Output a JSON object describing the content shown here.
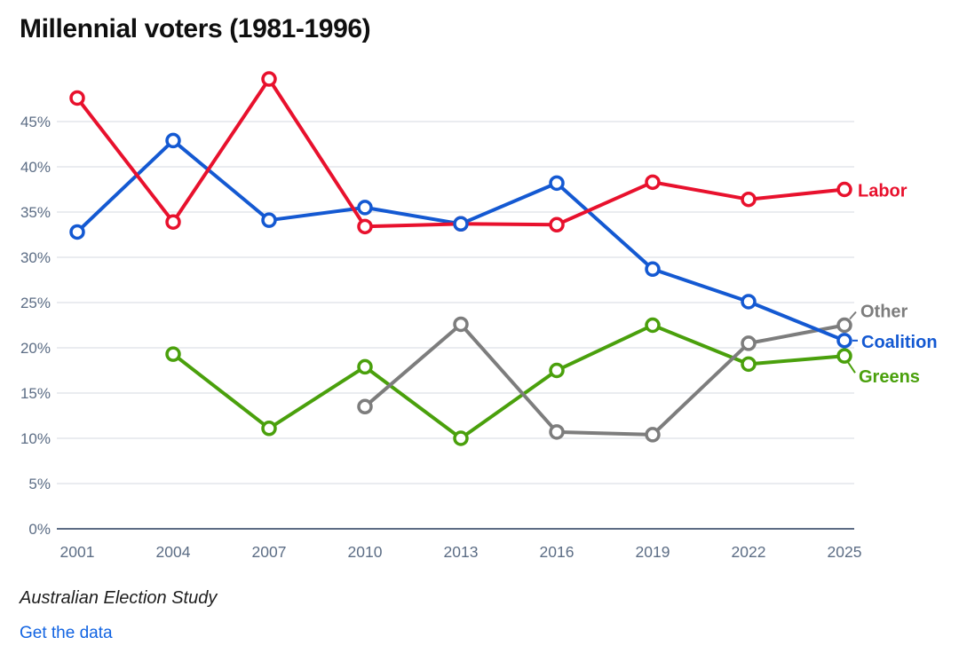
{
  "title": "Millennial voters (1981-1996)",
  "footer": {
    "source": "Australian Election Study",
    "link_label": "Get the data"
  },
  "colors": {
    "labor": "#e8112d",
    "coalition": "#1459d2",
    "greens": "#4aa00c",
    "other": "#7d7d7d",
    "axis_text": "#5c6d85",
    "gridline": "#e3e6eb",
    "zero_line": "#5d6c84",
    "title_text": "#0f0f0f",
    "link": "#1264e2"
  },
  "chart_data": {
    "type": "line",
    "title": "Millennial voters (1981-1996)",
    "x": [
      2001,
      2004,
      2007,
      2010,
      2013,
      2016,
      2019,
      2022,
      2025
    ],
    "x_tick_labels": [
      "2001",
      "2004",
      "2007",
      "2010",
      "2013",
      "2016",
      "2019",
      "2022",
      "2025"
    ],
    "yticks": [
      0,
      5,
      10,
      15,
      20,
      25,
      30,
      35,
      40,
      45
    ],
    "y_tick_labels": [
      "0%",
      "5%",
      "10%",
      "15%",
      "20%",
      "25%",
      "30%",
      "35%",
      "40%",
      "45%"
    ],
    "ylim": [
      0,
      50
    ],
    "grid": true,
    "legend_position": "right-of-line-ends",
    "series": [
      {
        "name": "Labor",
        "color": "#e8112d",
        "values": [
          47.6,
          33.9,
          49.7,
          33.4,
          33.7,
          33.6,
          38.3,
          36.4,
          37.5
        ]
      },
      {
        "name": "Coalition",
        "color": "#1459d2",
        "values": [
          32.8,
          42.9,
          34.1,
          35.5,
          33.7,
          38.2,
          28.7,
          25.1,
          20.8
        ]
      },
      {
        "name": "Greens",
        "color": "#4aa00c",
        "values": [
          null,
          19.3,
          11.1,
          17.9,
          10.0,
          17.5,
          22.5,
          18.2,
          19.1
        ]
      },
      {
        "name": "Other",
        "color": "#7d7d7d",
        "values": [
          null,
          null,
          null,
          13.5,
          22.6,
          10.7,
          10.4,
          20.5,
          22.5
        ]
      }
    ]
  }
}
